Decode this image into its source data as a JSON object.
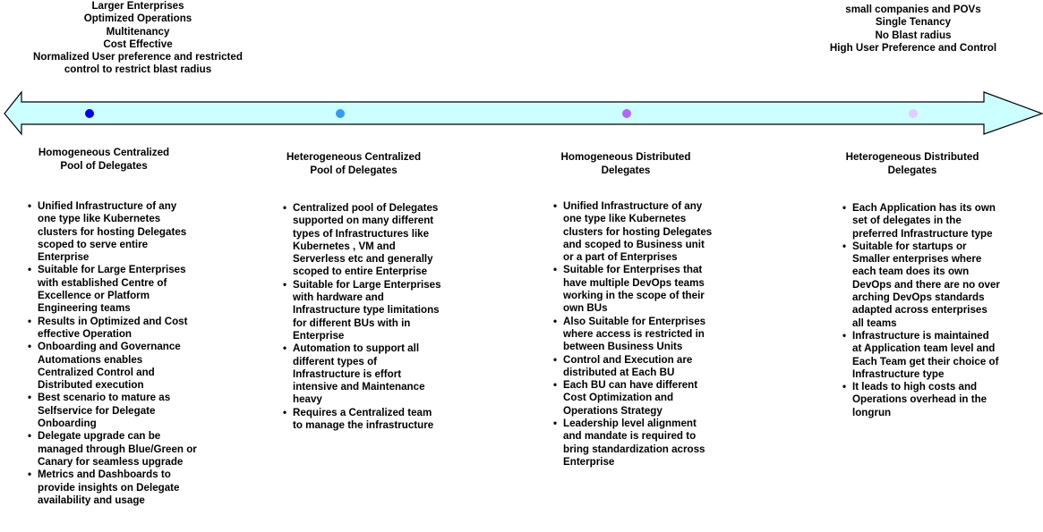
{
  "top_notes": {
    "left": [
      "Larger Enterprises",
      "Optimized Operations",
      "Multitenancy",
      "Cost Effective",
      "Normalized User preference and restricted",
      "control  to restrict blast radius"
    ],
    "right": [
      "small companies and POVs",
      "Single Tenancy",
      "No Blast radius",
      "High User Preference and Control"
    ]
  },
  "arrow": {
    "fill": "#ccffff",
    "stroke": "#000000"
  },
  "columns": [
    {
      "title": [
        "Homogeneous Centralized",
        "Pool of Delegates"
      ],
      "dot_color": "#0000ee",
      "bullets": [
        "Unified Infrastructure of any one type like Kubernetes clusters for hosting Delegates scoped to serve entire Enterprise",
        "Suitable for Large Enterprises with established  Centre of Excellence or Platform Engineering teams",
        "Results in Optimized and Cost effective Operation",
        "Onboarding and Governance Automations enables Centralized Control and Distributed execution",
        "Best scenario to mature as Selfservice for Delegate Onboarding",
        "Delegate upgrade can be managed through Blue/Green or Canary for seamless upgrade",
        "Metrics and Dashboards to provide insights on Delegate availability and usage"
      ]
    },
    {
      "title": [
        "Heterogeneous Centralized",
        "Pool of Delegates"
      ],
      "dot_color": "#3399ff",
      "bullets": [
        "Centralized pool of Delegates supported on many different types of Infrastructures like Kubernetes , VM and Serverless etc and generally scoped to entire Enterprise",
        "Suitable for Large Enterprises with hardware and Infrastructure type limitations for different BUs with in Enterprise",
        "Automation to support all different types of Infrastructure is effort intensive and Maintenance heavy",
        "Requires a Centralized team to manage the infrastructure"
      ]
    },
    {
      "title": [
        "Homogeneous Distributed",
        "Delegates"
      ],
      "dot_color": "#b266ff",
      "bullets": [
        "Unified Infrastructure of any one type like Kubernetes clusters for hosting Delegates and scoped to Business unit or a part of Enterprises",
        "Suitable for Enterprises that have multiple DevOps teams working in the scope of their own BUs",
        "Also Suitable for Enterprises where access is restricted in between Business Units",
        "Control and Execution are distributed at Each BU",
        "Each BU can have different Cost Optimization and Operations Strategy",
        "Leadership level alignment and mandate is required to bring standardization across Enterprise"
      ]
    },
    {
      "title": [
        "Heterogeneous Distributed",
        "Delegates"
      ],
      "dot_color": "#e5ccff",
      "bullets": [
        "Each Application has its own set of delegates in the preferred Infrastructure type",
        "Suitable for startups or Smaller enterprises where each team does its own DevOps and there are no over arching DevOps standards adapted across enterprises  all teams",
        "Infrastructure is maintained at Application team level and Each Team get their choice of Infrastructure type",
        " It leads to high costs and Operations overhead in the longrun"
      ]
    }
  ]
}
